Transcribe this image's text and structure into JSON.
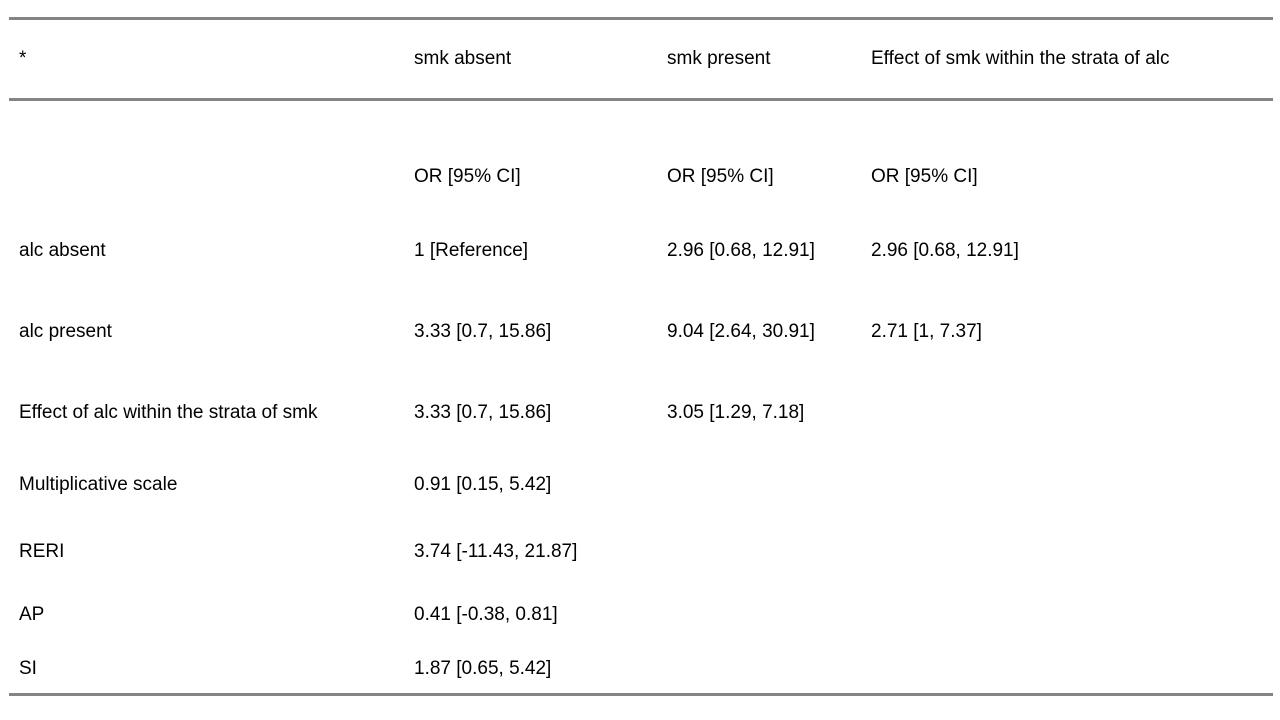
{
  "table": {
    "description": "Interaction analysis table of smoking (smk) and alcohol (alc) exposure with odds ratios and 95% confidence intervals",
    "header": {
      "col1": "*",
      "col2": "smk absent",
      "col3": "smk present",
      "col4": "Effect of smk within the strata of alc"
    },
    "rows": [
      [
        "",
        "OR [95% CI]",
        "OR [95% CI]",
        "OR [95% CI]"
      ],
      [
        "alc absent",
        "1 [Reference]",
        "2.96 [0.68, 12.91]",
        "2.96 [0.68, 12.91]"
      ],
      [
        "alc present",
        "3.33 [0.7, 15.86]",
        "9.04 [2.64, 30.91]",
        "2.71 [1, 7.37]"
      ],
      [
        "Effect of alc within the strata of smk",
        "3.33 [0.7, 15.86]",
        "3.05 [1.29, 7.18]",
        ""
      ],
      [
        "Multiplicative scale",
        "0.91 [0.15, 5.42]",
        "",
        ""
      ],
      [
        "RERI",
        "3.74 [-11.43, 21.87]",
        "",
        ""
      ],
      [
        "AP",
        "0.41 [-0.38, 0.81]",
        "",
        ""
      ],
      [
        "SI",
        "1.87 [0.65, 5.42]",
        "",
        ""
      ]
    ],
    "colors": {
      "rule": "#848484",
      "text": "#000000",
      "background": "#ffffff"
    }
  }
}
